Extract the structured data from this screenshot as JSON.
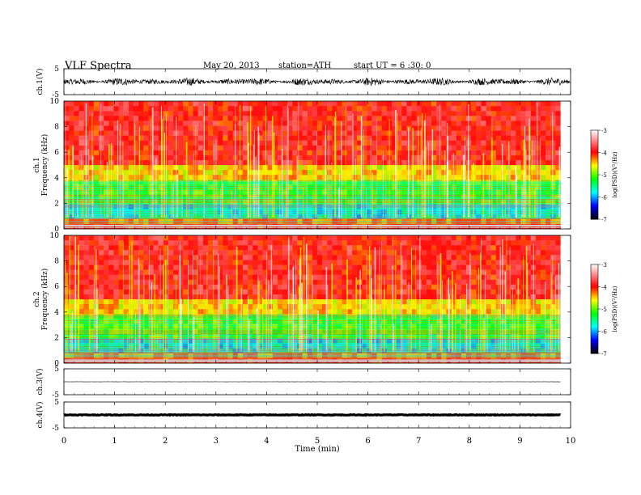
{
  "header": {
    "title": "VLF Spectra",
    "date": "May 20, 2013",
    "station": "station=ATH",
    "start": "start UT =  6 :30: 0"
  },
  "chart_data": [
    {
      "type": "line",
      "ylabel": "ch.1(V)",
      "ylim": [
        -5,
        5
      ],
      "y_ticks": [
        "5",
        "-5"
      ],
      "xlim": [
        0,
        10
      ],
      "description_series": "broadband waveform, amplitude about ±1.5 V"
    },
    {
      "type": "heatmap",
      "ylabel_line1": "ch.1",
      "ylabel_line2": "Frequency  (kHz)",
      "ylim": [
        0,
        10
      ],
      "y_ticks": [
        "0",
        "2",
        "4",
        "6",
        "8",
        "10"
      ],
      "xlim": [
        0,
        9.8
      ],
      "colorbar": {
        "label": "log(PSD)(V²/Hz)",
        "range": [
          -7,
          -3
        ],
        "ticks": [
          "-3",
          "-4",
          "-5",
          "-6",
          "-7"
        ]
      },
      "bands_khz": [
        {
          "from": 0.0,
          "to": 0.35,
          "logpsd": -4.0
        },
        {
          "from": 0.35,
          "to": 0.9,
          "logpsd": -4.3
        },
        {
          "from": 0.9,
          "to": 2.0,
          "logpsd": -5.7
        },
        {
          "from": 2.0,
          "to": 3.7,
          "logpsd": -5.1
        },
        {
          "from": 3.7,
          "to": 5.0,
          "logpsd": -4.5
        },
        {
          "from": 5.0,
          "to": 10.0,
          "logpsd": -3.9
        }
      ]
    },
    {
      "type": "heatmap",
      "ylabel_line1": "ch.2",
      "ylabel_line2": "Frequency  (kHz)",
      "ylim": [
        0,
        10
      ],
      "y_ticks": [
        "0",
        "2",
        "4",
        "6",
        "8",
        "10"
      ],
      "xlim": [
        0,
        9.8
      ],
      "colorbar": {
        "label": "log(PSD)(V²/Hz)",
        "range": [
          -7,
          -3
        ],
        "ticks": [
          "-3",
          "-4",
          "-5",
          "-6",
          "-7"
        ]
      },
      "bands_khz": [
        {
          "from": 0.0,
          "to": 0.35,
          "logpsd": -4.0
        },
        {
          "from": 0.35,
          "to": 0.9,
          "logpsd": -4.3
        },
        {
          "from": 0.9,
          "to": 2.0,
          "logpsd": -5.7
        },
        {
          "from": 2.0,
          "to": 3.7,
          "logpsd": -5.1
        },
        {
          "from": 3.7,
          "to": 5.0,
          "logpsd": -4.5
        },
        {
          "from": 5.0,
          "to": 10.0,
          "logpsd": -3.9
        }
      ]
    },
    {
      "type": "line",
      "ylabel": "ch.3(V)",
      "ylim": [
        -5,
        5
      ],
      "y_ticks": [
        "5",
        "-5"
      ],
      "xlim": [
        0,
        9.8
      ],
      "baseline": 0
    },
    {
      "type": "line",
      "ylabel": "ch.4(V)",
      "ylim": [
        -5,
        5
      ],
      "y_ticks": [
        "5",
        "-5"
      ],
      "xlim": [
        0,
        9.8
      ],
      "baseline": 0
    }
  ],
  "xaxis": {
    "label": "Time  (min)",
    "range": [
      0,
      10
    ],
    "ticks": [
      "0",
      "1",
      "2",
      "3",
      "4",
      "5",
      "6",
      "7",
      "8",
      "9",
      "10"
    ]
  },
  "colors": {
    "scale": [
      "#000000",
      "#0000ff",
      "#00ffff",
      "#00ff00",
      "#ffff00",
      "#ff0000",
      "#ffffff"
    ]
  }
}
